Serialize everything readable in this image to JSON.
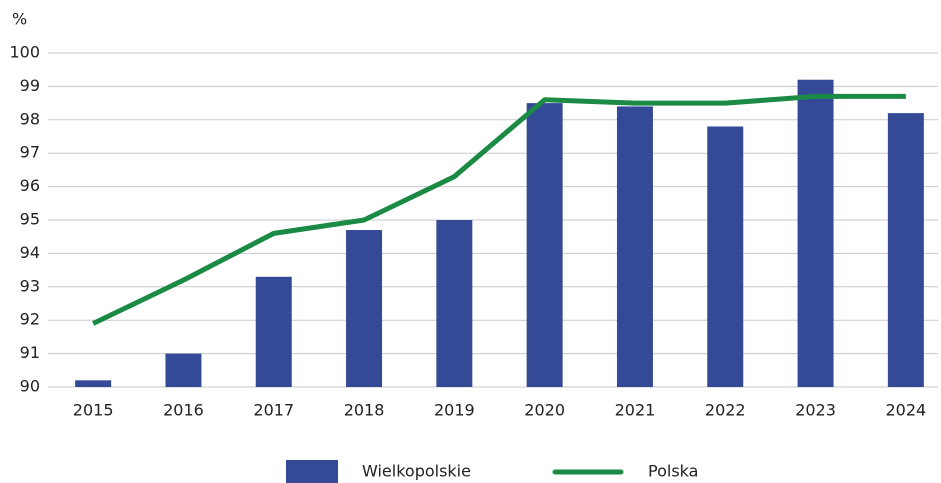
{
  "chart_data": {
    "type": "bar",
    "ylabel": "%",
    "categories": [
      "2015",
      "2016",
      "2017",
      "2018",
      "2019",
      "2020",
      "2021",
      "2022",
      "2023",
      "2024"
    ],
    "series": [
      {
        "name": "Wielkopolskie",
        "type": "bar",
        "color": "#354a97",
        "values": [
          90.2,
          91.0,
          93.3,
          94.7,
          95.0,
          98.5,
          98.4,
          97.8,
          99.2,
          98.2
        ]
      },
      {
        "name": "Polska",
        "type": "line",
        "color": "#1a8a44",
        "values": [
          91.9,
          93.2,
          94.6,
          95.0,
          96.3,
          98.6,
          98.5,
          98.5,
          98.7,
          98.7
        ]
      }
    ],
    "ylim": [
      90,
      100
    ],
    "yticks": [
      90,
      91,
      92,
      93,
      94,
      95,
      96,
      97,
      98,
      99,
      100
    ],
    "grid": true,
    "legend": "bottom"
  }
}
